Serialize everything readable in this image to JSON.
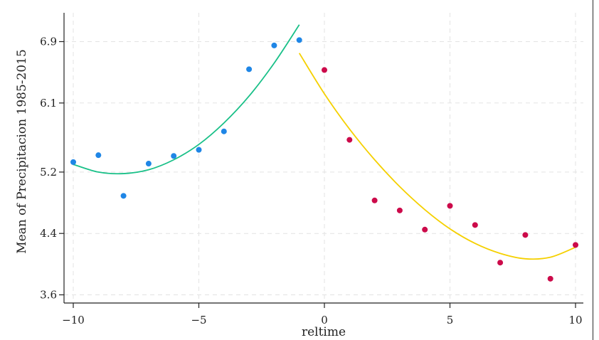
{
  "chart_data": {
    "type": "scatter",
    "title": "",
    "xlabel": "reltime",
    "ylabel": "Mean of Precipitacion 1985-2015",
    "xlim": [
      -10.2,
      10.3
    ],
    "ylim": [
      3.5,
      7.35
    ],
    "x_ticks": [
      -10,
      -5,
      0,
      5,
      10
    ],
    "x_tick_labels": [
      "−10",
      "−5",
      "0",
      "5",
      "10"
    ],
    "y_ticks": [
      3.6,
      4.4,
      5.2,
      6.1,
      6.9
    ],
    "y_tick_labels": [
      "3.6",
      "4.4",
      "5.2",
      "6.1",
      "6.9"
    ],
    "grid": true,
    "series": [
      {
        "kind": "scatter",
        "color": "#1f86e6",
        "points": [
          {
            "x": -10,
            "y": 5.33
          },
          {
            "x": -9,
            "y": 5.42
          },
          {
            "x": -8,
            "y": 4.89
          },
          {
            "x": -7,
            "y": 5.31
          },
          {
            "x": -6,
            "y": 5.41
          },
          {
            "x": -5,
            "y": 5.49
          },
          {
            "x": -4,
            "y": 5.73
          },
          {
            "x": -3,
            "y": 6.54
          },
          {
            "x": -2,
            "y": 6.85
          },
          {
            "x": -1,
            "y": 6.92
          }
        ]
      },
      {
        "kind": "scatter",
        "color": "#cc0a4a",
        "points": [
          {
            "x": 0,
            "y": 6.53
          },
          {
            "x": 1,
            "y": 5.62
          },
          {
            "x": 2,
            "y": 4.83
          },
          {
            "x": 3,
            "y": 4.7
          },
          {
            "x": 4,
            "y": 4.45
          },
          {
            "x": 5,
            "y": 4.76
          },
          {
            "x": 6,
            "y": 4.51
          },
          {
            "x": 7,
            "y": 4.02
          },
          {
            "x": 8,
            "y": 4.38
          },
          {
            "x": 9,
            "y": 3.81
          },
          {
            "x": 10,
            "y": 4.25
          }
        ]
      },
      {
        "kind": "fit",
        "color": "#19c088",
        "x": [
          -10,
          -9,
          -8,
          -7,
          -6,
          -5,
          -4,
          -3,
          -2,
          -1
        ],
        "y": [
          5.3,
          5.2,
          5.18,
          5.23,
          5.36,
          5.56,
          5.84,
          6.19,
          6.62,
          7.12
        ]
      },
      {
        "kind": "fit",
        "color": "#f5d000",
        "x": [
          -1,
          0,
          1,
          2,
          3,
          4,
          5,
          6,
          7,
          8,
          9,
          10
        ],
        "y": [
          6.75,
          6.22,
          5.76,
          5.36,
          5.01,
          4.71,
          4.46,
          4.27,
          4.14,
          4.07,
          4.09,
          4.22
        ]
      }
    ]
  }
}
